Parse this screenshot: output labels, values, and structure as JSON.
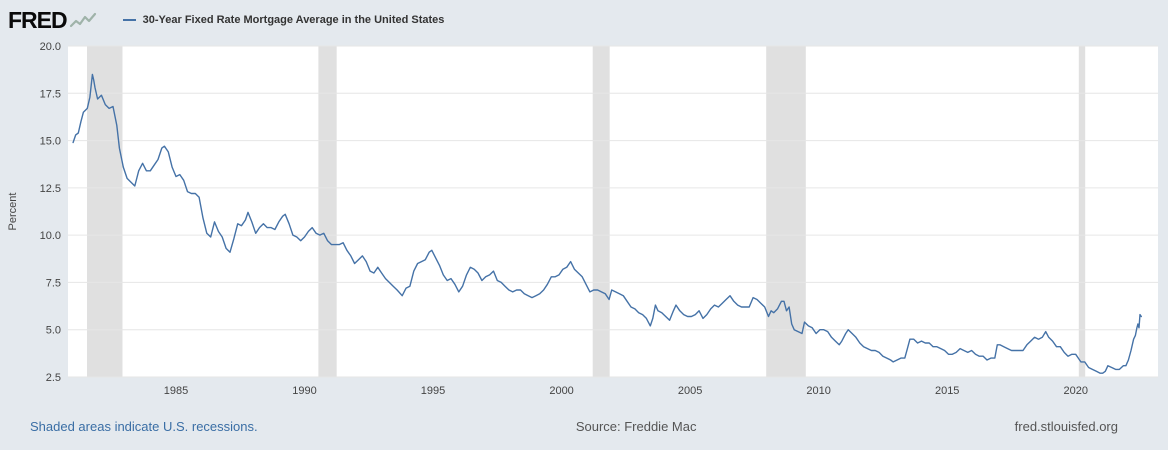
{
  "header": {
    "logo_text": "FRED",
    "legend": {
      "series_label": "30-Year Fixed Rate Mortgage Average in the United States"
    }
  },
  "footer": {
    "recession_note": "Shaded areas indicate U.S. recessions.",
    "source": "Source: Freddie Mac",
    "site": "fred.stlouisfed.org"
  },
  "colors": {
    "line": "#4572a7",
    "background": "#e4e9ee",
    "plot_background": "#ffffff",
    "recession_band": "#e0e0e0",
    "gridline": "#e6e6e6",
    "axis_text": "#444444"
  },
  "chart_data": {
    "type": "line",
    "title": "30-Year Fixed Rate Mortgage Average in the United States",
    "ylabel": "Percent",
    "xlabel": "",
    "x_range": [
      1980.8,
      2023.2
    ],
    "y_range": [
      2.5,
      20.0
    ],
    "y_ticks": [
      2.5,
      5.0,
      7.5,
      10.0,
      12.5,
      15.0,
      17.5,
      20.0
    ],
    "x_ticks": [
      1985,
      1990,
      1995,
      2000,
      2005,
      2010,
      2015,
      2020
    ],
    "grid": "horizontal",
    "legend_position": "top",
    "recessions": [
      [
        1981.54,
        1982.92
      ],
      [
        1990.54,
        1991.25
      ],
      [
        2001.21,
        2001.87
      ],
      [
        2007.96,
        2009.5
      ],
      [
        2020.12,
        2020.37
      ]
    ],
    "series": [
      {
        "name": "30-Year Fixed Rate Mortgage Average in the United States",
        "color": "#4572a7",
        "points": [
          [
            1981.0,
            14.9
          ],
          [
            1981.1,
            15.3
          ],
          [
            1981.2,
            15.4
          ],
          [
            1981.3,
            16.0
          ],
          [
            1981.4,
            16.5
          ],
          [
            1981.55,
            16.7
          ],
          [
            1981.65,
            17.3
          ],
          [
            1981.75,
            18.5
          ],
          [
            1981.8,
            18.2
          ],
          [
            1981.85,
            17.8
          ],
          [
            1981.95,
            17.2
          ],
          [
            1982.1,
            17.4
          ],
          [
            1982.25,
            16.9
          ],
          [
            1982.4,
            16.7
          ],
          [
            1982.55,
            16.8
          ],
          [
            1982.7,
            15.8
          ],
          [
            1982.8,
            14.6
          ],
          [
            1982.95,
            13.6
          ],
          [
            1983.1,
            13.0
          ],
          [
            1983.25,
            12.8
          ],
          [
            1983.4,
            12.6
          ],
          [
            1983.55,
            13.4
          ],
          [
            1983.7,
            13.8
          ],
          [
            1983.85,
            13.4
          ],
          [
            1984.0,
            13.4
          ],
          [
            1984.15,
            13.7
          ],
          [
            1984.3,
            14.0
          ],
          [
            1984.45,
            14.6
          ],
          [
            1984.55,
            14.7
          ],
          [
            1984.7,
            14.4
          ],
          [
            1984.85,
            13.6
          ],
          [
            1985.0,
            13.1
          ],
          [
            1985.15,
            13.2
          ],
          [
            1985.3,
            12.9
          ],
          [
            1985.45,
            12.3
          ],
          [
            1985.6,
            12.2
          ],
          [
            1985.75,
            12.2
          ],
          [
            1985.9,
            12.0
          ],
          [
            1986.05,
            10.9
          ],
          [
            1986.2,
            10.1
          ],
          [
            1986.35,
            9.9
          ],
          [
            1986.5,
            10.7
          ],
          [
            1986.65,
            10.2
          ],
          [
            1986.8,
            9.9
          ],
          [
            1986.95,
            9.3
          ],
          [
            1987.1,
            9.1
          ],
          [
            1987.25,
            9.8
          ],
          [
            1987.4,
            10.6
          ],
          [
            1987.55,
            10.5
          ],
          [
            1987.7,
            10.8
          ],
          [
            1987.8,
            11.2
          ],
          [
            1987.95,
            10.7
          ],
          [
            1988.1,
            10.1
          ],
          [
            1988.25,
            10.4
          ],
          [
            1988.4,
            10.6
          ],
          [
            1988.55,
            10.4
          ],
          [
            1988.7,
            10.4
          ],
          [
            1988.85,
            10.3
          ],
          [
            1989.0,
            10.7
          ],
          [
            1989.15,
            11.0
          ],
          [
            1989.25,
            11.1
          ],
          [
            1989.4,
            10.6
          ],
          [
            1989.55,
            10.0
          ],
          [
            1989.7,
            9.9
          ],
          [
            1989.85,
            9.7
          ],
          [
            1990.0,
            9.9
          ],
          [
            1990.15,
            10.2
          ],
          [
            1990.3,
            10.4
          ],
          [
            1990.45,
            10.1
          ],
          [
            1990.6,
            10.0
          ],
          [
            1990.75,
            10.1
          ],
          [
            1990.9,
            9.7
          ],
          [
            1991.05,
            9.5
          ],
          [
            1991.2,
            9.5
          ],
          [
            1991.35,
            9.5
          ],
          [
            1991.5,
            9.6
          ],
          [
            1991.65,
            9.2
          ],
          [
            1991.8,
            8.9
          ],
          [
            1991.95,
            8.5
          ],
          [
            1992.1,
            8.7
          ],
          [
            1992.25,
            8.9
          ],
          [
            1992.4,
            8.6
          ],
          [
            1992.55,
            8.1
          ],
          [
            1992.7,
            8.0
          ],
          [
            1992.85,
            8.3
          ],
          [
            1993.0,
            8.0
          ],
          [
            1993.15,
            7.7
          ],
          [
            1993.3,
            7.5
          ],
          [
            1993.45,
            7.3
          ],
          [
            1993.6,
            7.1
          ],
          [
            1993.8,
            6.8
          ],
          [
            1993.95,
            7.2
          ],
          [
            1994.1,
            7.3
          ],
          [
            1994.25,
            8.1
          ],
          [
            1994.4,
            8.5
          ],
          [
            1994.55,
            8.6
          ],
          [
            1994.7,
            8.7
          ],
          [
            1994.85,
            9.1
          ],
          [
            1994.95,
            9.2
          ],
          [
            1995.1,
            8.8
          ],
          [
            1995.25,
            8.4
          ],
          [
            1995.4,
            7.9
          ],
          [
            1995.55,
            7.6
          ],
          [
            1995.7,
            7.7
          ],
          [
            1995.85,
            7.4
          ],
          [
            1996.0,
            7.0
          ],
          [
            1996.15,
            7.3
          ],
          [
            1996.3,
            7.9
          ],
          [
            1996.45,
            8.3
          ],
          [
            1996.6,
            8.2
          ],
          [
            1996.75,
            8.0
          ],
          [
            1996.9,
            7.6
          ],
          [
            1997.05,
            7.8
          ],
          [
            1997.2,
            7.9
          ],
          [
            1997.35,
            8.1
          ],
          [
            1997.5,
            7.6
          ],
          [
            1997.65,
            7.5
          ],
          [
            1997.8,
            7.3
          ],
          [
            1997.95,
            7.1
          ],
          [
            1998.1,
            7.0
          ],
          [
            1998.25,
            7.1
          ],
          [
            1998.4,
            7.1
          ],
          [
            1998.55,
            6.9
          ],
          [
            1998.7,
            6.8
          ],
          [
            1998.85,
            6.7
          ],
          [
            1999.0,
            6.8
          ],
          [
            1999.15,
            6.9
          ],
          [
            1999.3,
            7.1
          ],
          [
            1999.45,
            7.4
          ],
          [
            1999.6,
            7.8
          ],
          [
            1999.75,
            7.8
          ],
          [
            1999.9,
            7.9
          ],
          [
            2000.05,
            8.2
          ],
          [
            2000.2,
            8.3
          ],
          [
            2000.35,
            8.6
          ],
          [
            2000.5,
            8.2
          ],
          [
            2000.65,
            8.0
          ],
          [
            2000.8,
            7.8
          ],
          [
            2000.95,
            7.4
          ],
          [
            2001.1,
            7.0
          ],
          [
            2001.25,
            7.1
          ],
          [
            2001.4,
            7.1
          ],
          [
            2001.55,
            7.0
          ],
          [
            2001.7,
            6.9
          ],
          [
            2001.85,
            6.6
          ],
          [
            2001.95,
            7.1
          ],
          [
            2002.1,
            7.0
          ],
          [
            2002.25,
            6.9
          ],
          [
            2002.4,
            6.8
          ],
          [
            2002.55,
            6.5
          ],
          [
            2002.7,
            6.2
          ],
          [
            2002.85,
            6.1
          ],
          [
            2003.0,
            5.9
          ],
          [
            2003.15,
            5.8
          ],
          [
            2003.3,
            5.6
          ],
          [
            2003.45,
            5.2
          ],
          [
            2003.55,
            5.6
          ],
          [
            2003.65,
            6.3
          ],
          [
            2003.75,
            6.0
          ],
          [
            2003.9,
            5.9
          ],
          [
            2004.05,
            5.7
          ],
          [
            2004.2,
            5.5
          ],
          [
            2004.35,
            6.0
          ],
          [
            2004.45,
            6.3
          ],
          [
            2004.6,
            6.0
          ],
          [
            2004.75,
            5.8
          ],
          [
            2004.9,
            5.7
          ],
          [
            2005.05,
            5.7
          ],
          [
            2005.2,
            5.8
          ],
          [
            2005.35,
            6.0
          ],
          [
            2005.5,
            5.6
          ],
          [
            2005.65,
            5.8
          ],
          [
            2005.8,
            6.1
          ],
          [
            2005.95,
            6.3
          ],
          [
            2006.1,
            6.2
          ],
          [
            2006.25,
            6.4
          ],
          [
            2006.4,
            6.6
          ],
          [
            2006.55,
            6.8
          ],
          [
            2006.7,
            6.5
          ],
          [
            2006.85,
            6.3
          ],
          [
            2007.0,
            6.2
          ],
          [
            2007.15,
            6.2
          ],
          [
            2007.3,
            6.2
          ],
          [
            2007.45,
            6.7
          ],
          [
            2007.6,
            6.6
          ],
          [
            2007.75,
            6.4
          ],
          [
            2007.9,
            6.2
          ],
          [
            2008.05,
            5.7
          ],
          [
            2008.15,
            6.0
          ],
          [
            2008.25,
            5.9
          ],
          [
            2008.4,
            6.1
          ],
          [
            2008.55,
            6.5
          ],
          [
            2008.65,
            6.5
          ],
          [
            2008.75,
            6.0
          ],
          [
            2008.85,
            6.2
          ],
          [
            2008.95,
            5.3
          ],
          [
            2009.05,
            5.0
          ],
          [
            2009.2,
            4.9
          ],
          [
            2009.35,
            4.8
          ],
          [
            2009.45,
            5.4
          ],
          [
            2009.6,
            5.2
          ],
          [
            2009.75,
            5.1
          ],
          [
            2009.9,
            4.8
          ],
          [
            2010.05,
            5.0
          ],
          [
            2010.2,
            5.0
          ],
          [
            2010.35,
            4.9
          ],
          [
            2010.5,
            4.6
          ],
          [
            2010.65,
            4.4
          ],
          [
            2010.8,
            4.2
          ],
          [
            2010.9,
            4.4
          ],
          [
            2011.05,
            4.8
          ],
          [
            2011.15,
            5.0
          ],
          [
            2011.3,
            4.8
          ],
          [
            2011.45,
            4.6
          ],
          [
            2011.6,
            4.3
          ],
          [
            2011.75,
            4.1
          ],
          [
            2011.9,
            4.0
          ],
          [
            2012.05,
            3.9
          ],
          [
            2012.2,
            3.9
          ],
          [
            2012.35,
            3.8
          ],
          [
            2012.5,
            3.6
          ],
          [
            2012.65,
            3.5
          ],
          [
            2012.8,
            3.4
          ],
          [
            2012.9,
            3.3
          ],
          [
            2013.05,
            3.4
          ],
          [
            2013.2,
            3.5
          ],
          [
            2013.35,
            3.5
          ],
          [
            2013.45,
            4.0
          ],
          [
            2013.55,
            4.5
          ],
          [
            2013.7,
            4.5
          ],
          [
            2013.85,
            4.3
          ],
          [
            2014.0,
            4.4
          ],
          [
            2014.15,
            4.3
          ],
          [
            2014.3,
            4.3
          ],
          [
            2014.45,
            4.1
          ],
          [
            2014.6,
            4.1
          ],
          [
            2014.75,
            4.0
          ],
          [
            2014.9,
            3.9
          ],
          [
            2015.05,
            3.7
          ],
          [
            2015.2,
            3.7
          ],
          [
            2015.35,
            3.8
          ],
          [
            2015.5,
            4.0
          ],
          [
            2015.65,
            3.9
          ],
          [
            2015.8,
            3.8
          ],
          [
            2015.95,
            3.9
          ],
          [
            2016.1,
            3.7
          ],
          [
            2016.25,
            3.6
          ],
          [
            2016.4,
            3.6
          ],
          [
            2016.55,
            3.4
          ],
          [
            2016.7,
            3.5
          ],
          [
            2016.85,
            3.5
          ],
          [
            2016.95,
            4.2
          ],
          [
            2017.05,
            4.2
          ],
          [
            2017.2,
            4.1
          ],
          [
            2017.35,
            4.0
          ],
          [
            2017.5,
            3.9
          ],
          [
            2017.65,
            3.9
          ],
          [
            2017.8,
            3.9
          ],
          [
            2017.95,
            3.9
          ],
          [
            2018.1,
            4.2
          ],
          [
            2018.25,
            4.4
          ],
          [
            2018.4,
            4.6
          ],
          [
            2018.55,
            4.5
          ],
          [
            2018.7,
            4.6
          ],
          [
            2018.83,
            4.9
          ],
          [
            2018.95,
            4.6
          ],
          [
            2019.1,
            4.4
          ],
          [
            2019.25,
            4.1
          ],
          [
            2019.4,
            4.1
          ],
          [
            2019.55,
            3.8
          ],
          [
            2019.7,
            3.6
          ],
          [
            2019.85,
            3.7
          ],
          [
            2020.0,
            3.7
          ],
          [
            2020.1,
            3.5
          ],
          [
            2020.2,
            3.3
          ],
          [
            2020.35,
            3.3
          ],
          [
            2020.5,
            3.0
          ],
          [
            2020.65,
            2.9
          ],
          [
            2020.8,
            2.8
          ],
          [
            2020.95,
            2.7
          ],
          [
            2021.05,
            2.7
          ],
          [
            2021.15,
            2.8
          ],
          [
            2021.25,
            3.1
          ],
          [
            2021.4,
            3.0
          ],
          [
            2021.55,
            2.9
          ],
          [
            2021.7,
            2.9
          ],
          [
            2021.85,
            3.1
          ],
          [
            2021.95,
            3.1
          ],
          [
            2022.05,
            3.4
          ],
          [
            2022.15,
            3.9
          ],
          [
            2022.25,
            4.5
          ],
          [
            2022.32,
            4.7
          ],
          [
            2022.38,
            5.1
          ],
          [
            2022.42,
            5.3
          ],
          [
            2022.46,
            5.1
          ],
          [
            2022.5,
            5.8
          ],
          [
            2022.55,
            5.7
          ]
        ]
      }
    ]
  }
}
